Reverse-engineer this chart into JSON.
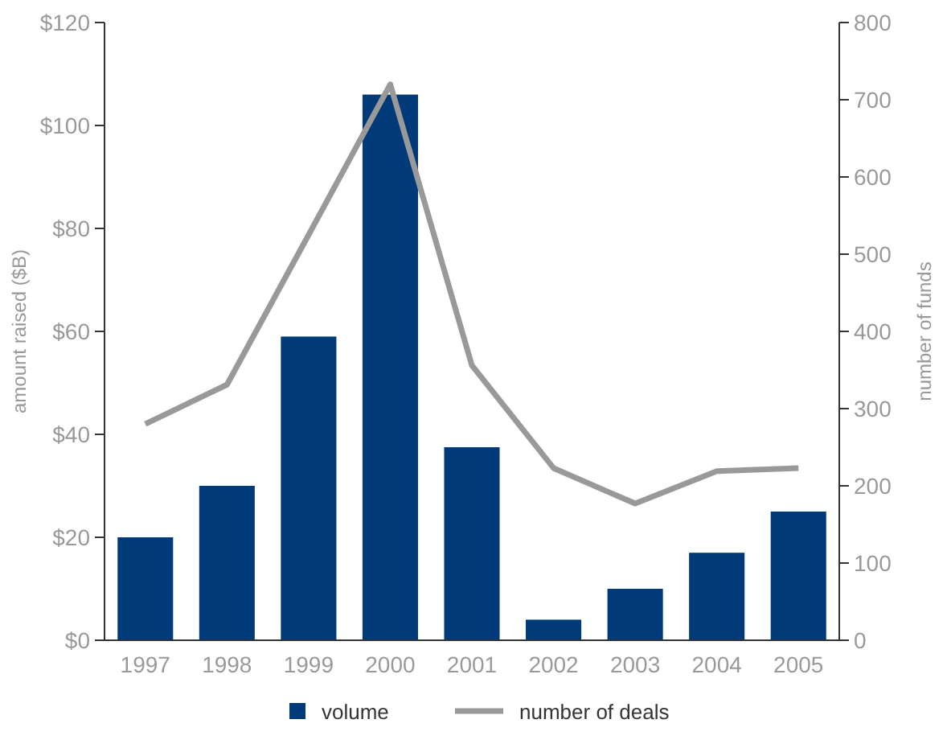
{
  "chart_data": {
    "type": "bar",
    "categories": [
      "1997",
      "1998",
      "1999",
      "2000",
      "2001",
      "2002",
      "2003",
      "2004",
      "2005"
    ],
    "series": [
      {
        "name": "volume",
        "color": "#003a78",
        "values": [
          20,
          30,
          59,
          106,
          37.5,
          4,
          10,
          17,
          25
        ]
      },
      {
        "name": "number of deals",
        "type": "line",
        "axis": "y2",
        "color": "#999999",
        "values": [
          280,
          331,
          525,
          720,
          356,
          223,
          177,
          219,
          223
        ]
      }
    ],
    "ylabel": "amount raised ($B)",
    "y2label": "number of funds",
    "ylim": [
      0,
      120
    ],
    "yticks": [
      {
        "value": 0,
        "label": "$0"
      },
      {
        "value": 20,
        "label": "$20"
      },
      {
        "value": 40,
        "label": "$40"
      },
      {
        "value": 60,
        "label": "$60"
      },
      {
        "value": 80,
        "label": "$80"
      },
      {
        "value": 100,
        "label": "$100"
      },
      {
        "value": 120,
        "label": "$120"
      }
    ],
    "y2lim": [
      0,
      800
    ],
    "y2ticks": [
      0,
      100,
      200,
      300,
      400,
      500,
      600,
      700,
      800
    ],
    "legend": "bottom",
    "grid": false,
    "marker": "none",
    "line_style": "solid"
  }
}
